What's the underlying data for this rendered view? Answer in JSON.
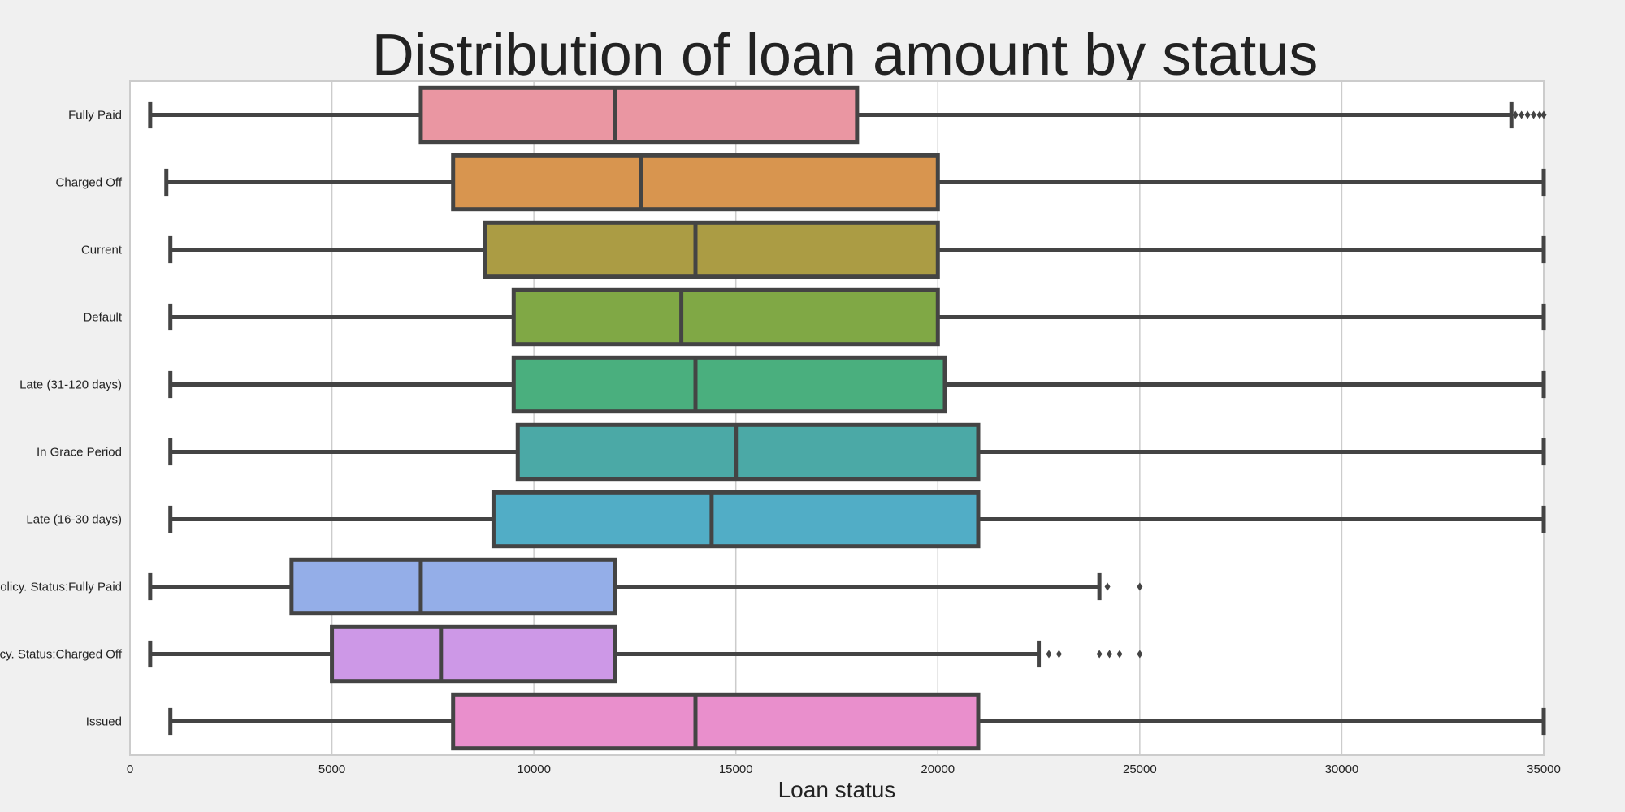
{
  "chart_data": {
    "type": "boxplot",
    "title": "Distribution of loan amount by status",
    "xlabel": "Loan status",
    "ylabel": "",
    "xlim": [
      0,
      35000
    ],
    "xticks": [
      0,
      5000,
      10000,
      15000,
      20000,
      25000,
      30000,
      35000
    ],
    "grid": "vertical",
    "legend": "none",
    "categories": [
      {
        "label": "Fully Paid",
        "color": "#ea96a2",
        "min": 500,
        "q1": 7200,
        "median": 12000,
        "q3": 18000,
        "max": 34200,
        "outliers": [
          34300,
          34450,
          34600,
          34750,
          34900,
          35000
        ]
      },
      {
        "label": "Charged Off",
        "color": "#d8954f",
        "min": 900,
        "q1": 8000,
        "median": 12650,
        "q3": 20000,
        "max": 35000,
        "outliers": []
      },
      {
        "label": "Current",
        "color": "#ab9c44",
        "min": 1000,
        "q1": 8800,
        "median": 14000,
        "q3": 20000,
        "max": 35000,
        "outliers": []
      },
      {
        "label": "Default",
        "color": "#80a845",
        "min": 1000,
        "q1": 9500,
        "median": 13650,
        "q3": 20000,
        "max": 35000,
        "outliers": []
      },
      {
        "label": "Late (31-120 days)",
        "color": "#4aaf7e",
        "min": 1000,
        "q1": 9500,
        "median": 14000,
        "q3": 20175,
        "max": 35000,
        "outliers": []
      },
      {
        "label": "In Grace Period",
        "color": "#4ba9a6",
        "min": 1000,
        "q1": 9600,
        "median": 15000,
        "q3": 21000,
        "max": 35000,
        "outliers": []
      },
      {
        "label": "Late (16-30 days)",
        "color": "#51adc6",
        "min": 1000,
        "q1": 9000,
        "median": 14400,
        "q3": 21000,
        "max": 35000,
        "outliers": []
      },
      {
        "label": "Does not meet the credit policy. Status:Fully Paid",
        "color": "#94aee8",
        "min": 500,
        "q1": 4000,
        "median": 7200,
        "q3": 12000,
        "max": 24000,
        "outliers": [
          24200,
          25000
        ]
      },
      {
        "label": "Does not meet the credit policy. Status:Charged Off",
        "color": "#cd98e7",
        "min": 500,
        "q1": 5000,
        "median": 7700,
        "q3": 12000,
        "max": 22500,
        "outliers": [
          22750,
          23000,
          24000,
          24250,
          24500,
          25000
        ]
      },
      {
        "label": "Issued",
        "color": "#e98fcc",
        "min": 1000,
        "q1": 8000,
        "median": 14000,
        "q3": 21000,
        "max": 35000,
        "outliers": []
      }
    ]
  },
  "colors": {
    "background": "#f0f0f0",
    "plot_area": "#ffffff",
    "grid": "#cccccc",
    "stroke": "#444444"
  }
}
